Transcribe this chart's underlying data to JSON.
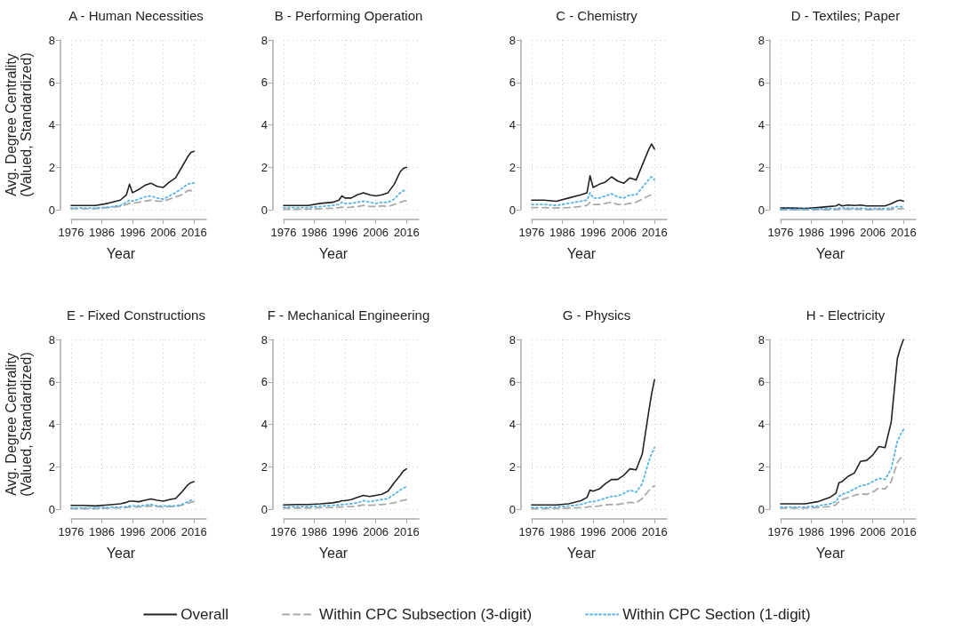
{
  "chart_data": [
    {
      "type": "line",
      "title": "A - Human Necessities",
      "xlabel": "Year",
      "ylabel": "Avg. Degree Centrality (Valued, Standardized)",
      "x": [
        1976,
        1980,
        1984,
        1988,
        1992,
        1994,
        1995,
        1996,
        1998,
        2000,
        2002,
        2004,
        2006,
        2008,
        2010,
        2012,
        2014,
        2015,
        2016
      ],
      "xlim": [
        1976,
        2020
      ],
      "xticks": [
        1976,
        1986,
        1996,
        2006,
        2016
      ],
      "ylim": [
        0,
        8
      ],
      "yticks": [
        0,
        2,
        4,
        6,
        8
      ],
      "grid": true,
      "marker": "none",
      "series": [
        {
          "color": "#222222",
          "line_style": "solid",
          "values": [
            0.2,
            0.2,
            0.2,
            0.3,
            0.45,
            0.7,
            1.2,
            0.8,
            0.95,
            1.15,
            1.25,
            1.1,
            1.05,
            1.3,
            1.5,
            2.0,
            2.5,
            2.7,
            2.75
          ]
        },
        {
          "color": "#aaaaaa",
          "line_style": "dashed",
          "values": [
            0.05,
            0.05,
            0.05,
            0.1,
            0.15,
            0.25,
            0.3,
            0.3,
            0.35,
            0.4,
            0.45,
            0.4,
            0.4,
            0.5,
            0.6,
            0.7,
            0.9,
            0.9,
            0.9
          ]
        },
        {
          "color": "#5ab4e5",
          "line_style": "dotted",
          "values": [
            0.08,
            0.08,
            0.08,
            0.12,
            0.2,
            0.35,
            0.45,
            0.4,
            0.5,
            0.6,
            0.65,
            0.55,
            0.5,
            0.65,
            0.8,
            1.0,
            1.2,
            1.25,
            1.25
          ]
        }
      ]
    },
    {
      "type": "line",
      "title": "B - Performing Operation",
      "xlabel": "Year",
      "x": [
        1976,
        1980,
        1984,
        1988,
        1992,
        1994,
        1995,
        1996,
        1998,
        2000,
        2002,
        2004,
        2006,
        2008,
        2010,
        2012,
        2014,
        2015,
        2016
      ],
      "xlim": [
        1976,
        2020
      ],
      "xticks": [
        1976,
        1986,
        1996,
        2006,
        2016
      ],
      "ylim": [
        0,
        8
      ],
      "yticks": [
        0,
        2,
        4,
        6,
        8
      ],
      "grid": true,
      "marker": "none",
      "series": [
        {
          "color": "#222222",
          "line_style": "solid",
          "values": [
            0.2,
            0.2,
            0.2,
            0.3,
            0.35,
            0.45,
            0.65,
            0.55,
            0.55,
            0.7,
            0.8,
            0.7,
            0.65,
            0.7,
            0.8,
            1.2,
            1.8,
            1.95,
            2.0
          ]
        },
        {
          "color": "#aaaaaa",
          "line_style": "dashed",
          "values": [
            0.02,
            0.02,
            0.03,
            0.05,
            0.07,
            0.1,
            0.12,
            0.1,
            0.12,
            0.15,
            0.2,
            0.15,
            0.15,
            0.18,
            0.15,
            0.25,
            0.35,
            0.4,
            0.42
          ]
        },
        {
          "color": "#5ab4e5",
          "line_style": "dotted",
          "values": [
            0.1,
            0.1,
            0.1,
            0.15,
            0.2,
            0.25,
            0.35,
            0.3,
            0.3,
            0.35,
            0.4,
            0.35,
            0.3,
            0.35,
            0.35,
            0.5,
            0.8,
            0.9,
            0.9
          ]
        }
      ]
    },
    {
      "type": "line",
      "title": "C - Chemistry",
      "xlabel": "Year",
      "x": [
        1976,
        1980,
        1984,
        1988,
        1992,
        1994,
        1995,
        1996,
        1998,
        2000,
        2002,
        2004,
        2006,
        2008,
        2010,
        2012,
        2014,
        2015,
        2016
      ],
      "xlim": [
        1976,
        2020
      ],
      "xticks": [
        1976,
        1986,
        1996,
        2006,
        2016
      ],
      "ylim": [
        0,
        8
      ],
      "yticks": [
        0,
        2,
        4,
        6,
        8
      ],
      "grid": true,
      "marker": "none",
      "series": [
        {
          "color": "#222222",
          "line_style": "solid",
          "values": [
            0.45,
            0.45,
            0.4,
            0.55,
            0.7,
            0.8,
            1.6,
            1.05,
            1.2,
            1.3,
            1.55,
            1.35,
            1.25,
            1.5,
            1.4,
            2.1,
            2.8,
            3.1,
            2.85
          ]
        },
        {
          "color": "#aaaaaa",
          "line_style": "dashed",
          "values": [
            0.1,
            0.1,
            0.08,
            0.1,
            0.15,
            0.2,
            0.35,
            0.25,
            0.25,
            0.3,
            0.35,
            0.25,
            0.25,
            0.3,
            0.35,
            0.5,
            0.65,
            0.7,
            0.7
          ]
        },
        {
          "color": "#5ab4e5",
          "line_style": "dotted",
          "values": [
            0.25,
            0.25,
            0.2,
            0.3,
            0.4,
            0.45,
            0.8,
            0.55,
            0.55,
            0.65,
            0.75,
            0.6,
            0.55,
            0.7,
            0.7,
            1.05,
            1.4,
            1.55,
            1.4
          ]
        }
      ]
    },
    {
      "type": "line",
      "title": "D - Textiles; Paper",
      "xlabel": "Year",
      "x": [
        1976,
        1980,
        1984,
        1988,
        1992,
        1994,
        1995,
        1996,
        1998,
        2000,
        2002,
        2004,
        2006,
        2008,
        2010,
        2012,
        2014,
        2015,
        2016
      ],
      "xlim": [
        1976,
        2020
      ],
      "xticks": [
        1976,
        1986,
        1996,
        2006,
        2016
      ],
      "ylim": [
        0,
        8
      ],
      "yticks": [
        0,
        2,
        4,
        6,
        8
      ],
      "grid": true,
      "marker": "none",
      "series": [
        {
          "color": "#222222",
          "line_style": "solid",
          "values": [
            0.08,
            0.08,
            0.06,
            0.1,
            0.15,
            0.18,
            0.25,
            0.18,
            0.22,
            0.2,
            0.22,
            0.18,
            0.18,
            0.18,
            0.18,
            0.28,
            0.42,
            0.45,
            0.4
          ]
        },
        {
          "color": "#aaaaaa",
          "line_style": "dashed",
          "values": [
            0,
            0,
            0,
            0,
            0,
            0,
            0.02,
            0.02,
            0.02,
            0.02,
            0.02,
            0,
            0,
            0.02,
            0,
            0.02,
            0.05,
            0.05,
            0.05
          ]
        },
        {
          "color": "#5ab4e5",
          "line_style": "dotted",
          "values": [
            0.02,
            0.02,
            0.02,
            0.04,
            0.05,
            0.05,
            0.08,
            0.08,
            0.08,
            0.06,
            0.08,
            0.05,
            0.05,
            0.06,
            0.05,
            0.08,
            0.15,
            0.15,
            0.12
          ]
        }
      ]
    },
    {
      "type": "line",
      "title": "E - Fixed Constructions",
      "xlabel": "Year",
      "ylabel": "Avg. Degree Centrality (Valued, Standardized)",
      "x": [
        1976,
        1980,
        1984,
        1988,
        1992,
        1994,
        1995,
        1996,
        1998,
        2000,
        2002,
        2004,
        2006,
        2008,
        2010,
        2012,
        2014,
        2015,
        2016
      ],
      "xlim": [
        1976,
        2020
      ],
      "xticks": [
        1976,
        1986,
        1996,
        2006,
        2016
      ],
      "ylim": [
        0,
        8
      ],
      "yticks": [
        0,
        2,
        4,
        6,
        8
      ],
      "grid": true,
      "marker": "none",
      "series": [
        {
          "color": "#222222",
          "line_style": "solid",
          "values": [
            0.18,
            0.18,
            0.15,
            0.2,
            0.25,
            0.32,
            0.38,
            0.38,
            0.35,
            0.42,
            0.48,
            0.42,
            0.38,
            0.45,
            0.5,
            0.8,
            1.15,
            1.25,
            1.3
          ]
        },
        {
          "color": "#aaaaaa",
          "line_style": "dashed",
          "values": [
            0.02,
            0.02,
            0.02,
            0.05,
            0.06,
            0.08,
            0.1,
            0.1,
            0.1,
            0.12,
            0.15,
            0.12,
            0.1,
            0.12,
            0.12,
            0.18,
            0.28,
            0.32,
            0.35
          ]
        },
        {
          "color": "#5ab4e5",
          "line_style": "dotted",
          "values": [
            0.06,
            0.06,
            0.06,
            0.08,
            0.1,
            0.12,
            0.15,
            0.15,
            0.15,
            0.18,
            0.22,
            0.15,
            0.15,
            0.15,
            0.15,
            0.22,
            0.35,
            0.42,
            0.45
          ]
        }
      ]
    },
    {
      "type": "line",
      "title": "F - Mechanical Engineering",
      "xlabel": "Year",
      "x": [
        1976,
        1980,
        1984,
        1988,
        1992,
        1994,
        1995,
        1996,
        1998,
        2000,
        2002,
        2004,
        2006,
        2008,
        2010,
        2012,
        2014,
        2015,
        2016
      ],
      "xlim": [
        1976,
        2020
      ],
      "xticks": [
        1976,
        1986,
        1996,
        2006,
        2016
      ],
      "ylim": [
        0,
        8
      ],
      "yticks": [
        0,
        2,
        4,
        6,
        8
      ],
      "grid": true,
      "marker": "none",
      "series": [
        {
          "color": "#222222",
          "line_style": "solid",
          "values": [
            0.2,
            0.22,
            0.22,
            0.25,
            0.3,
            0.35,
            0.4,
            0.4,
            0.45,
            0.55,
            0.65,
            0.6,
            0.65,
            0.7,
            0.85,
            1.25,
            1.6,
            1.8,
            1.9
          ]
        },
        {
          "color": "#aaaaaa",
          "line_style": "dashed",
          "values": [
            0.05,
            0.05,
            0.05,
            0.07,
            0.08,
            0.1,
            0.1,
            0.12,
            0.12,
            0.15,
            0.2,
            0.18,
            0.2,
            0.22,
            0.25,
            0.3,
            0.38,
            0.42,
            0.45
          ]
        },
        {
          "color": "#5ab4e5",
          "line_style": "dotted",
          "values": [
            0.1,
            0.12,
            0.12,
            0.15,
            0.18,
            0.2,
            0.22,
            0.22,
            0.25,
            0.3,
            0.4,
            0.35,
            0.4,
            0.45,
            0.5,
            0.7,
            0.9,
            1.0,
            1.05
          ]
        }
      ]
    },
    {
      "type": "line",
      "title": "G - Physics",
      "xlabel": "Year",
      "x": [
        1976,
        1980,
        1984,
        1988,
        1992,
        1994,
        1995,
        1996,
        1998,
        2000,
        2002,
        2004,
        2006,
        2008,
        2010,
        2012,
        2014,
        2015,
        2016
      ],
      "xlim": [
        1976,
        2020
      ],
      "xticks": [
        1976,
        1986,
        1996,
        2006,
        2016
      ],
      "ylim": [
        0,
        8
      ],
      "yticks": [
        0,
        2,
        4,
        6,
        8
      ],
      "grid": true,
      "marker": "none",
      "series": [
        {
          "color": "#222222",
          "line_style": "solid",
          "values": [
            0.2,
            0.2,
            0.2,
            0.25,
            0.4,
            0.55,
            0.9,
            0.85,
            0.95,
            1.2,
            1.4,
            1.4,
            1.6,
            1.9,
            1.85,
            2.6,
            4.5,
            5.4,
            6.1
          ]
        },
        {
          "color": "#aaaaaa",
          "line_style": "dashed",
          "values": [
            0.02,
            0.02,
            0.03,
            0.05,
            0.07,
            0.1,
            0.12,
            0.12,
            0.15,
            0.2,
            0.22,
            0.22,
            0.28,
            0.32,
            0.3,
            0.5,
            0.85,
            1.0,
            1.1
          ]
        },
        {
          "color": "#5ab4e5",
          "line_style": "dotted",
          "values": [
            0.08,
            0.08,
            0.1,
            0.15,
            0.22,
            0.3,
            0.35,
            0.35,
            0.42,
            0.52,
            0.6,
            0.62,
            0.75,
            0.9,
            0.8,
            1.2,
            2.2,
            2.6,
            2.9
          ]
        }
      ]
    },
    {
      "type": "line",
      "title": "H - Electricity",
      "xlabel": "Year",
      "x": [
        1976,
        1980,
        1984,
        1988,
        1992,
        1994,
        1995,
        1996,
        1998,
        2000,
        2002,
        2004,
        2006,
        2008,
        2010,
        2012,
        2014,
        2015,
        2016
      ],
      "xlim": [
        1976,
        2020
      ],
      "xticks": [
        1976,
        1986,
        1996,
        2006,
        2016
      ],
      "ylim": [
        0,
        8
      ],
      "yticks": [
        0,
        2,
        4,
        6,
        8
      ],
      "grid": true,
      "marker": "none",
      "legend": "bottom",
      "series": [
        {
          "name": "Overall",
          "color": "#222222",
          "line_style": "solid",
          "values": [
            0.25,
            0.25,
            0.25,
            0.35,
            0.55,
            0.75,
            1.25,
            1.3,
            1.55,
            1.7,
            2.25,
            2.3,
            2.55,
            2.95,
            2.9,
            4.1,
            7.1,
            7.6,
            8.0
          ]
        },
        {
          "name": "Within CPC Subsection (3-digit)",
          "color": "#aaaaaa",
          "line_style": "dashed",
          "values": [
            0.05,
            0.05,
            0.05,
            0.08,
            0.12,
            0.2,
            0.35,
            0.45,
            0.55,
            0.65,
            0.72,
            0.7,
            0.8,
            1.0,
            0.95,
            1.3,
            2.2,
            2.4,
            2.55
          ]
        },
        {
          "name": "Within CPC Section (1-digit)",
          "color": "#5ab4e5",
          "line_style": "dotted",
          "values": [
            0.1,
            0.1,
            0.1,
            0.15,
            0.25,
            0.35,
            0.6,
            0.7,
            0.8,
            0.95,
            1.1,
            1.15,
            1.3,
            1.45,
            1.4,
            1.9,
            3.2,
            3.5,
            3.75
          ]
        }
      ]
    }
  ]
}
